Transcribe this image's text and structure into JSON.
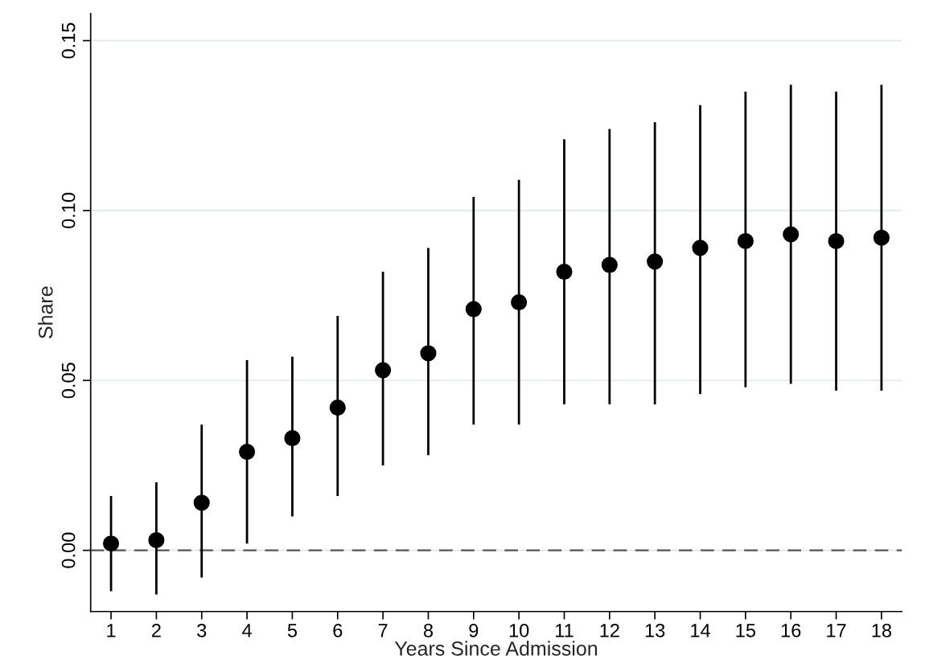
{
  "chart_data": {
    "type": "scatter",
    "xlabel": "Years Since Admission",
    "ylabel": "Share",
    "categories": [
      "1",
      "2",
      "3",
      "4",
      "5",
      "6",
      "7",
      "8",
      "9",
      "10",
      "11",
      "12",
      "13",
      "14",
      "15",
      "16",
      "17",
      "18"
    ],
    "values": [
      0.002,
      0.003,
      0.014,
      0.029,
      0.033,
      0.042,
      0.053,
      0.058,
      0.071,
      0.073,
      0.082,
      0.084,
      0.085,
      0.089,
      0.091,
      0.093,
      0.091,
      0.092
    ],
    "errors": [
      [
        -0.012,
        0.016
      ],
      [
        -0.013,
        0.02
      ],
      [
        -0.008,
        0.037
      ],
      [
        0.002,
        0.056
      ],
      [
        0.01,
        0.057
      ],
      [
        0.016,
        0.069
      ],
      [
        0.025,
        0.082
      ],
      [
        0.028,
        0.089
      ],
      [
        0.037,
        0.104
      ],
      [
        0.037,
        0.109
      ],
      [
        0.043,
        0.121
      ],
      [
        0.043,
        0.124
      ],
      [
        0.043,
        0.126
      ],
      [
        0.046,
        0.131
      ],
      [
        0.048,
        0.135
      ],
      [
        0.049,
        0.137
      ],
      [
        0.047,
        0.135
      ],
      [
        0.047,
        0.137
      ]
    ],
    "color": "#000000",
    "marker": "circle",
    "ylim": [
      -0.018,
      0.158
    ],
    "yticks": [
      {
        "value": 0,
        "label": "0.00"
      },
      {
        "value": 0.05,
        "label": "0.05"
      },
      {
        "value": 0.1,
        "label": "0.10"
      },
      {
        "value": 0.15,
        "label": "0.15"
      }
    ],
    "grid": "y",
    "ref_lines": [
      {
        "axis": "y",
        "value": 0,
        "label": null,
        "color": "#555555",
        "line_style": "dashed"
      }
    ]
  }
}
